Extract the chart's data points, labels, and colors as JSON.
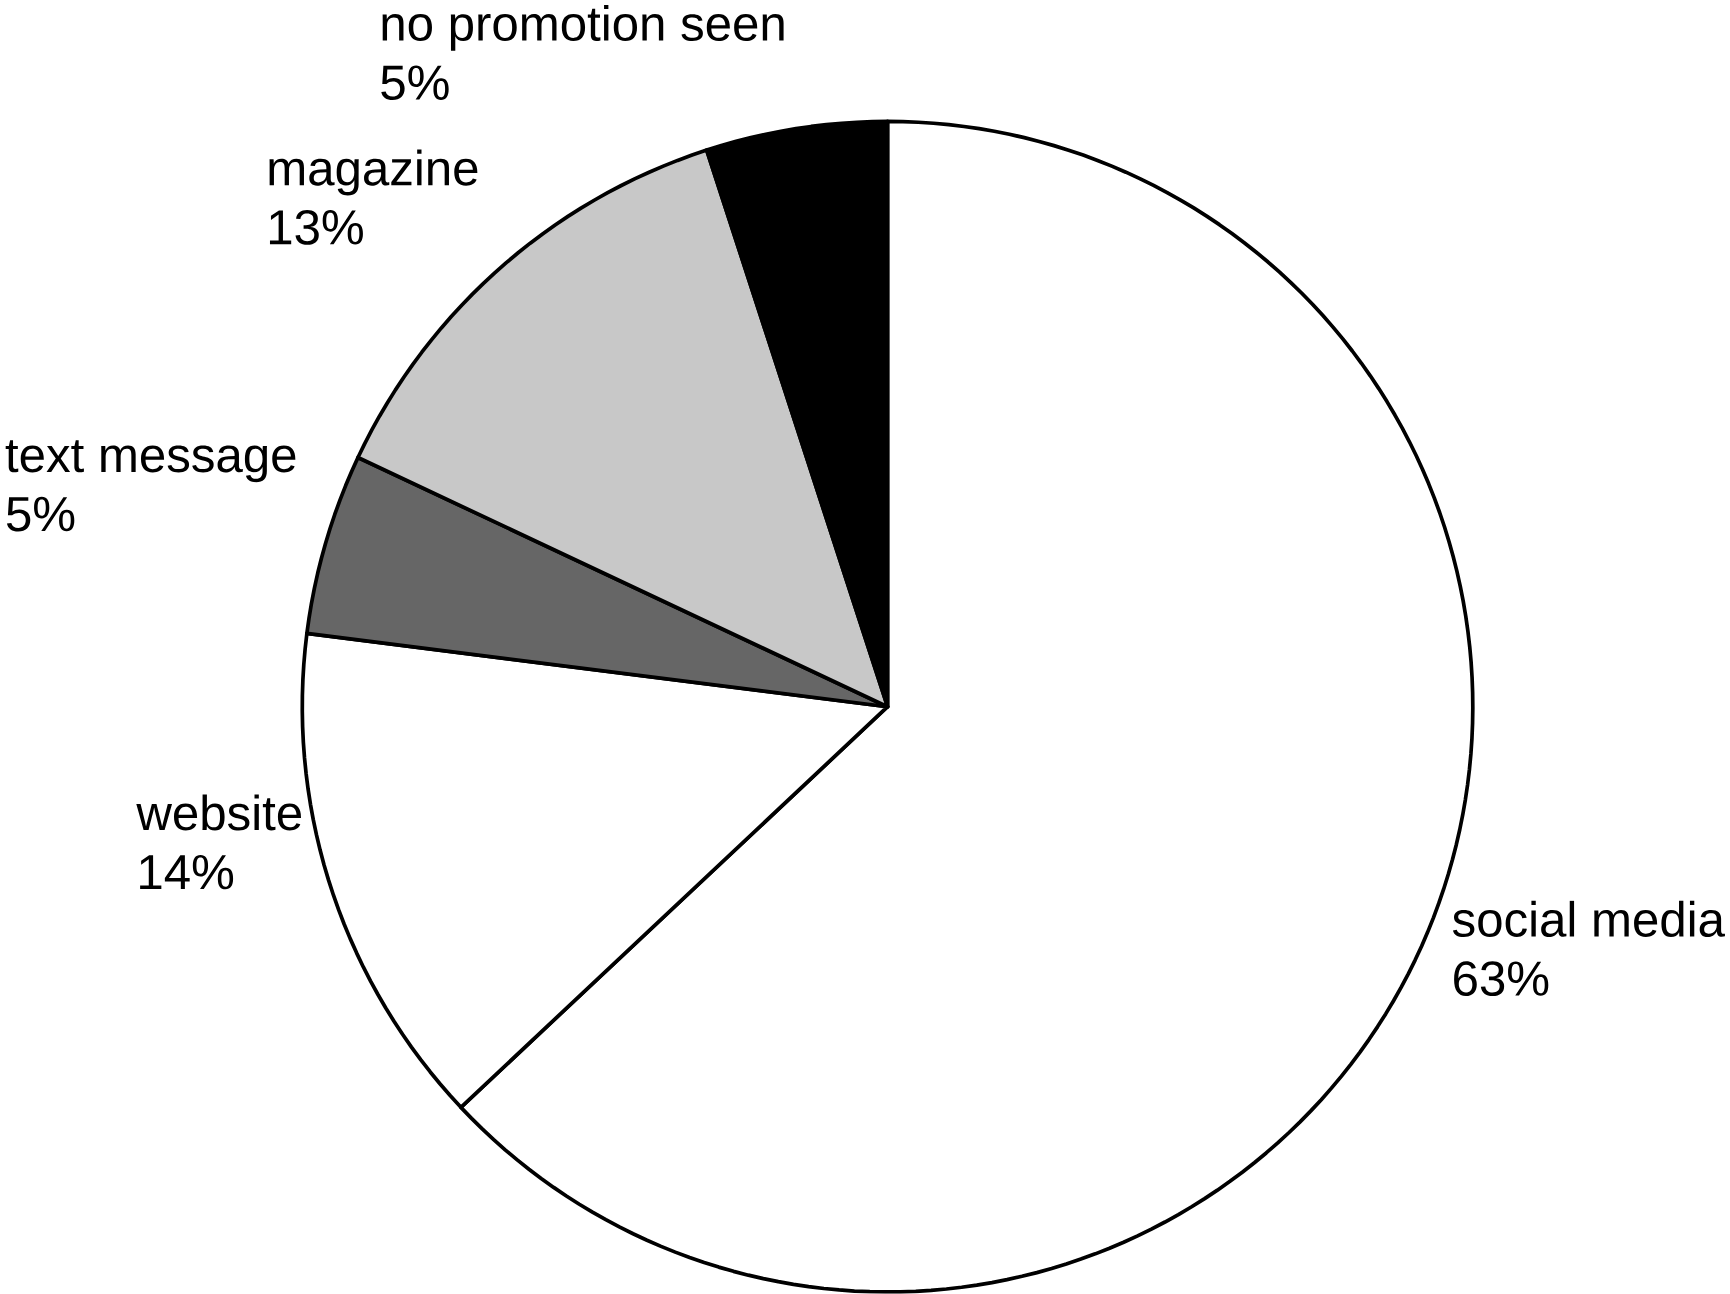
{
  "chart_data": {
    "type": "pie",
    "categories": [
      "social media",
      "website",
      "text message",
      "magazine",
      "no promotion seen"
    ],
    "values": [
      63,
      14,
      5,
      13,
      5
    ],
    "value_labels": [
      "63%",
      "14%",
      "5%",
      "13%",
      "5%"
    ],
    "colors": [
      "#ffffff",
      "#ffffff",
      "#666666",
      "#c8c8c8",
      "#000000"
    ]
  }
}
